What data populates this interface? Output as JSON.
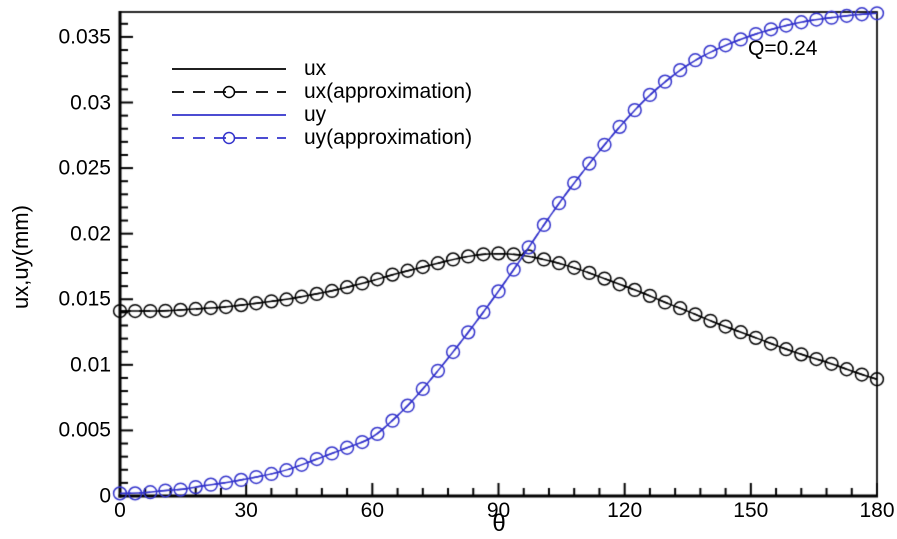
{
  "chart_data": {
    "type": "line",
    "title": "",
    "xlabel": "θ",
    "ylabel": "ux,uy(mm)",
    "annotation": "Q=0.24",
    "xlim": [
      0,
      180
    ],
    "ylim": [
      0,
      0.0369
    ],
    "grid": false,
    "legend_position": "upper-left",
    "x_major_ticks": [
      0,
      30,
      60,
      90,
      120,
      150,
      180
    ],
    "x_minor_step": 6,
    "y_major_ticks": [
      0,
      0.005,
      0.01,
      0.015,
      0.02,
      0.025,
      0.03,
      0.035
    ],
    "y_minor_step": 0.001,
    "x_tick_labels": [
      "0",
      "30",
      "60",
      "90",
      "120",
      "150",
      "180"
    ],
    "y_tick_labels": [
      "0",
      "0.005",
      "0.01",
      "0.015",
      "0.02",
      "0.025",
      "0.03",
      "0.035"
    ],
    "marker_step_deg": 3.6,
    "x": [
      0,
      5,
      10,
      15,
      20,
      25,
      30,
      35,
      40,
      45,
      50,
      55,
      60,
      65,
      70,
      75,
      80,
      85,
      90,
      95,
      100,
      105,
      110,
      115,
      120,
      125,
      130,
      135,
      140,
      145,
      150,
      155,
      160,
      165,
      170,
      175,
      180
    ],
    "series": [
      {
        "name": "ux",
        "color": "#000000",
        "style": "solid",
        "marker": "none",
        "values": [
          0.0141,
          0.0141,
          0.0141,
          0.0142,
          0.0143,
          0.0144,
          0.0146,
          0.0148,
          0.015,
          0.0153,
          0.0156,
          0.016,
          0.0164,
          0.0169,
          0.0173,
          0.0177,
          0.0181,
          0.0184,
          0.0185,
          0.0184,
          0.0181,
          0.0177,
          0.0172,
          0.0166,
          0.016,
          0.0154,
          0.0147,
          0.0141,
          0.0134,
          0.0128,
          0.0122,
          0.0116,
          0.011,
          0.0105,
          0.01,
          0.0094,
          0.0089
        ]
      },
      {
        "name": "ux(approximation)",
        "color": "#000000",
        "style": "dashed",
        "marker": "circle",
        "values": [
          0.0141,
          0.0141,
          0.0141,
          0.0142,
          0.0143,
          0.0144,
          0.0146,
          0.0148,
          0.015,
          0.0153,
          0.0156,
          0.016,
          0.0164,
          0.0169,
          0.0173,
          0.0177,
          0.0181,
          0.0184,
          0.0185,
          0.0184,
          0.0181,
          0.0177,
          0.0172,
          0.0166,
          0.016,
          0.0154,
          0.0147,
          0.0141,
          0.0134,
          0.0128,
          0.0122,
          0.0116,
          0.011,
          0.0105,
          0.01,
          0.0094,
          0.0089
        ]
      },
      {
        "name": "uy",
        "color": "#3333cc",
        "style": "solid",
        "marker": "none",
        "values": [
          0.0002,
          0.0002,
          0.0004,
          0.0005,
          0.0008,
          0.001,
          0.0013,
          0.0016,
          0.002,
          0.0026,
          0.0032,
          0.0038,
          0.0044,
          0.0058,
          0.0074,
          0.0093,
          0.0113,
          0.0134,
          0.0156,
          0.0179,
          0.0203,
          0.0226,
          0.0247,
          0.0267,
          0.0286,
          0.0303,
          0.0317,
          0.0329,
          0.0338,
          0.0345,
          0.0351,
          0.0356,
          0.036,
          0.0363,
          0.0365,
          0.0367,
          0.0368
        ]
      },
      {
        "name": "uy(approximation)",
        "color": "#3333cc",
        "style": "dashed",
        "marker": "circle",
        "values": [
          0.0002,
          0.0002,
          0.0004,
          0.0005,
          0.0008,
          0.001,
          0.0013,
          0.0016,
          0.002,
          0.0026,
          0.0032,
          0.0038,
          0.0044,
          0.0058,
          0.0074,
          0.0093,
          0.0113,
          0.0134,
          0.0156,
          0.0179,
          0.0203,
          0.0226,
          0.0247,
          0.0267,
          0.0286,
          0.0303,
          0.0317,
          0.0329,
          0.0338,
          0.0345,
          0.0351,
          0.0356,
          0.036,
          0.0363,
          0.0365,
          0.0367,
          0.0368
        ]
      }
    ]
  }
}
